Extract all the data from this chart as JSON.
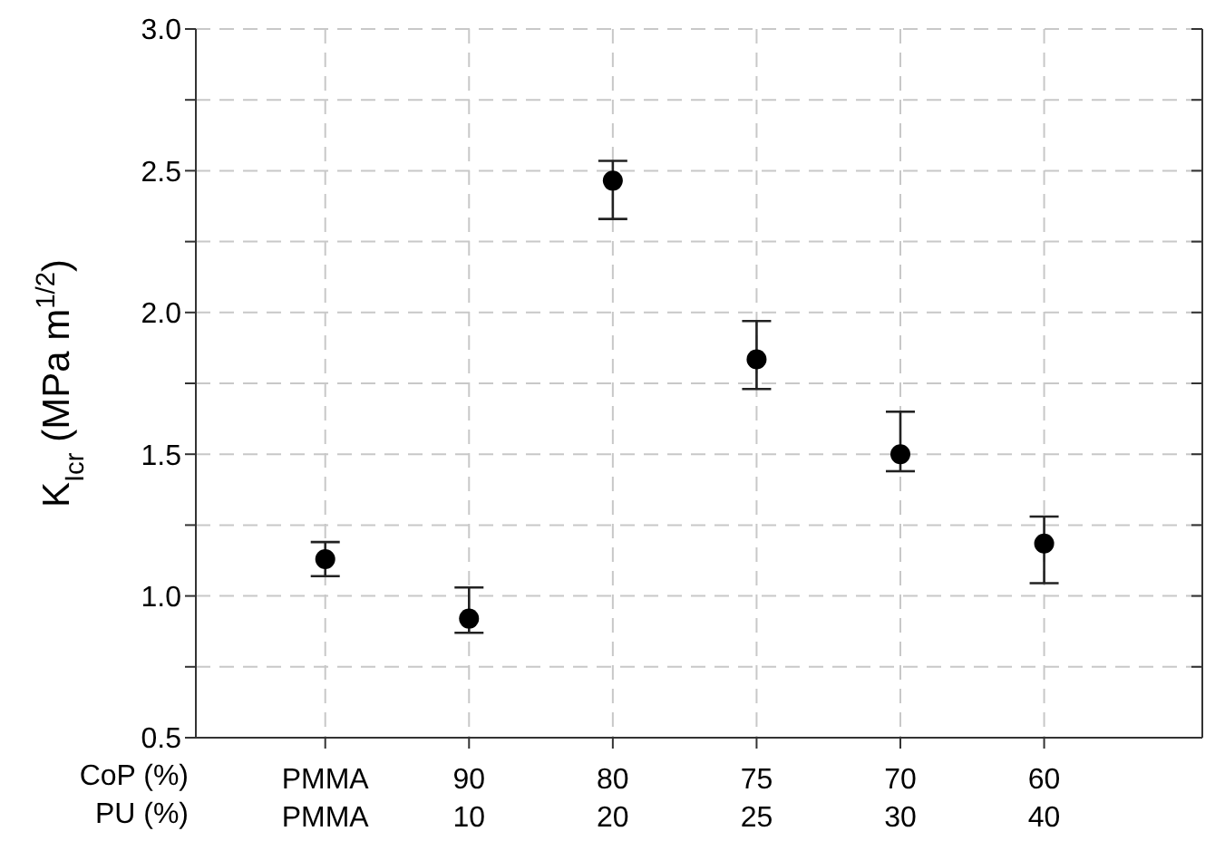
{
  "chart_data": {
    "type": "scatter",
    "categories": [
      "PMMA\nPMMA",
      "90\n10",
      "80\n20",
      "75\n25",
      "70\n30",
      "60\n40"
    ],
    "xlabel": "CoP (%)\nPU (%)",
    "ylabel": "K$_{Icr}$ (MPa m$^{1/2}$)",
    "series": [
      {
        "color": "#000000",
        "values": [
          1.13,
          0.92,
          2.465,
          1.835,
          1.5,
          1.185
        ],
        "errors": [
          [
            1.07,
            1.19
          ],
          [
            0.87,
            1.03
          ],
          [
            2.33,
            2.535
          ],
          [
            1.73,
            1.97
          ],
          [
            1.44,
            1.65
          ],
          [
            1.045,
            1.28
          ]
        ]
      }
    ],
    "ylim": [
      0.5,
      3.0
    ],
    "yticks": [
      0.5,
      {
        "value": 0.75,
        "label": null
      },
      {
        "value": 1,
        "label": "1.0"
      },
      {
        "value": 1.25,
        "label": null
      },
      1.5,
      {
        "value": 1.75,
        "label": null
      },
      {
        "value": 2,
        "label": "2.0"
      },
      {
        "value": 2.25,
        "label": null
      },
      2.5,
      {
        "value": 2.75,
        "label": null
      },
      {
        "value": 3,
        "label": "3.0"
      }
    ],
    "grid": true,
    "marker": "circle"
  }
}
